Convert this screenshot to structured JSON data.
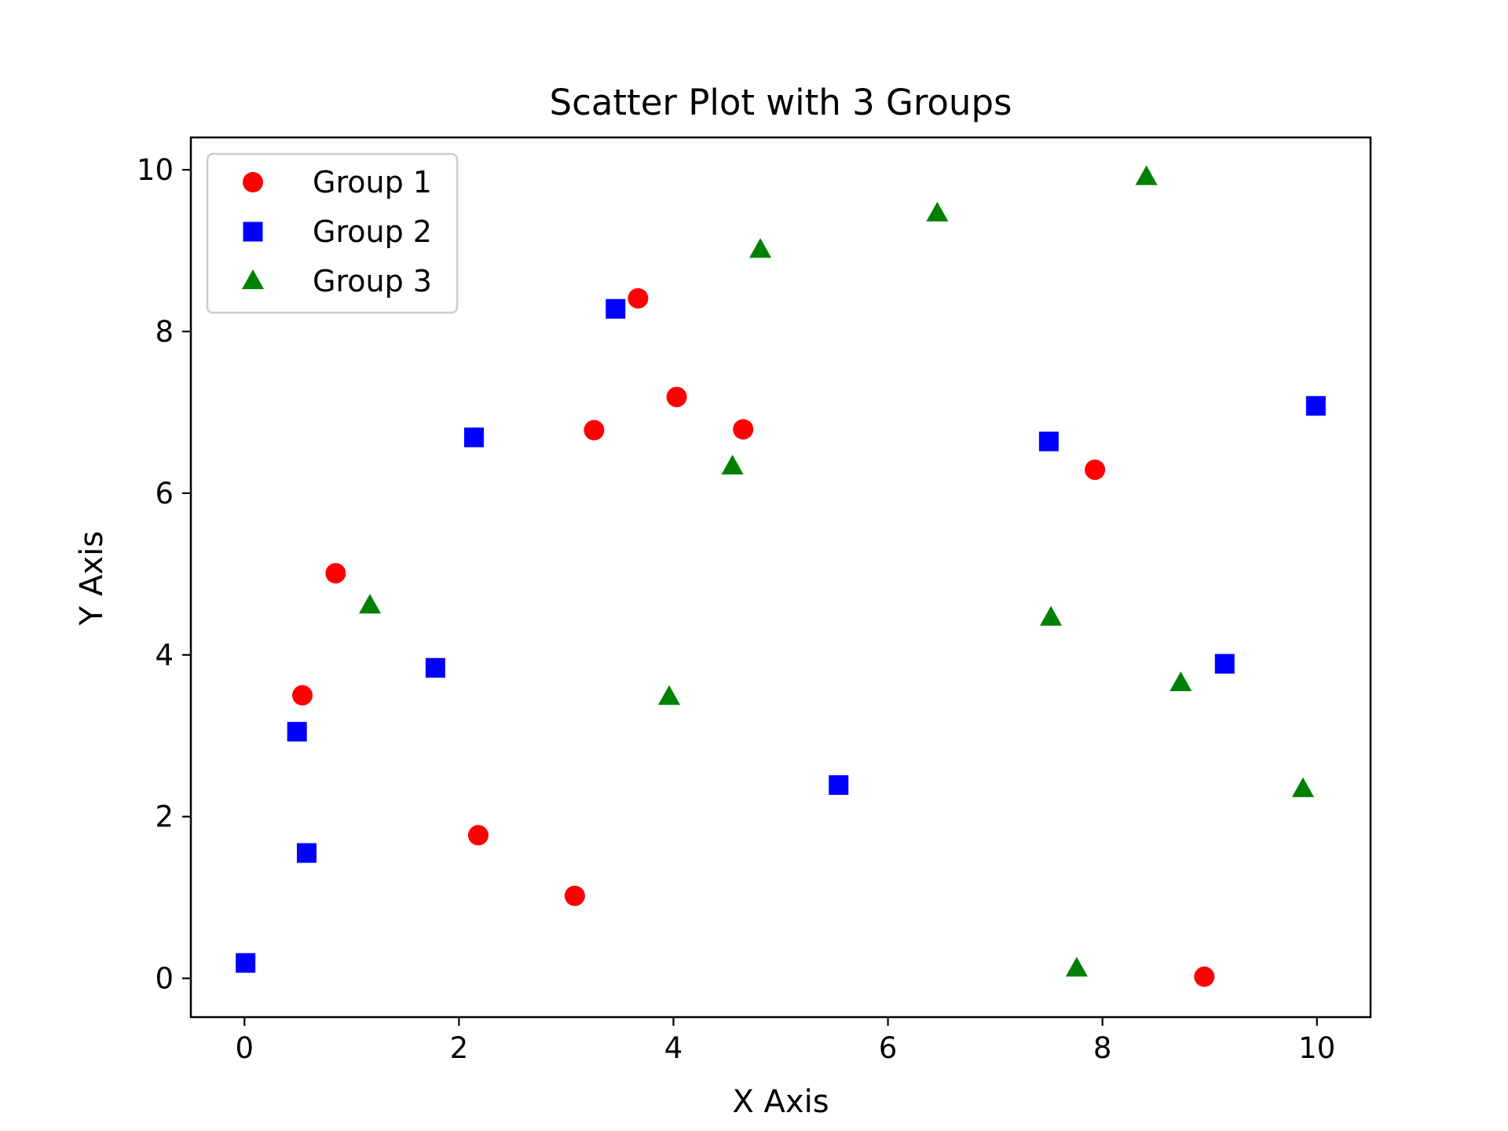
{
  "chart_data": {
    "type": "scatter",
    "title": "Scatter Plot with 3 Groups",
    "xlabel": "X Axis",
    "ylabel": "Y Axis",
    "xlim": [
      -0.5,
      10.5
    ],
    "ylim": [
      -0.48,
      10.4
    ],
    "xticks": [
      0,
      2,
      4,
      6,
      8,
      10
    ],
    "yticks": [
      0,
      2,
      4,
      6,
      8,
      10
    ],
    "grid": false,
    "legend_position": "upper left",
    "series": [
      {
        "name": "Group 1",
        "marker": "circle",
        "color": "#ff0000",
        "points": [
          {
            "x": 0.54,
            "y": 3.5
          },
          {
            "x": 0.85,
            "y": 5.01
          },
          {
            "x": 2.18,
            "y": 1.77
          },
          {
            "x": 3.08,
            "y": 1.02
          },
          {
            "x": 3.26,
            "y": 6.78
          },
          {
            "x": 3.67,
            "y": 8.41
          },
          {
            "x": 4.03,
            "y": 7.19
          },
          {
            "x": 4.65,
            "y": 6.79
          },
          {
            "x": 7.93,
            "y": 6.29
          },
          {
            "x": 8.95,
            "y": 0.02
          }
        ]
      },
      {
        "name": "Group 2",
        "marker": "square",
        "color": "#0000ff",
        "points": [
          {
            "x": 0.01,
            "y": 0.19
          },
          {
            "x": 0.49,
            "y": 3.05
          },
          {
            "x": 0.58,
            "y": 1.55
          },
          {
            "x": 1.78,
            "y": 3.84
          },
          {
            "x": 2.14,
            "y": 6.69
          },
          {
            "x": 3.46,
            "y": 8.28
          },
          {
            "x": 5.54,
            "y": 2.39
          },
          {
            "x": 7.5,
            "y": 6.64
          },
          {
            "x": 9.14,
            "y": 3.89
          },
          {
            "x": 9.99,
            "y": 7.08
          }
        ]
      },
      {
        "name": "Group 3",
        "marker": "triangle",
        "color": "#008000",
        "points": [
          {
            "x": 1.17,
            "y": 4.61
          },
          {
            "x": 3.96,
            "y": 3.48
          },
          {
            "x": 4.55,
            "y": 6.33
          },
          {
            "x": 4.81,
            "y": 9.01
          },
          {
            "x": 6.46,
            "y": 9.46
          },
          {
            "x": 7.52,
            "y": 4.46
          },
          {
            "x": 7.76,
            "y": 0.12
          },
          {
            "x": 8.41,
            "y": 9.91
          },
          {
            "x": 8.73,
            "y": 3.65
          },
          {
            "x": 9.87,
            "y": 2.34
          }
        ]
      }
    ]
  }
}
